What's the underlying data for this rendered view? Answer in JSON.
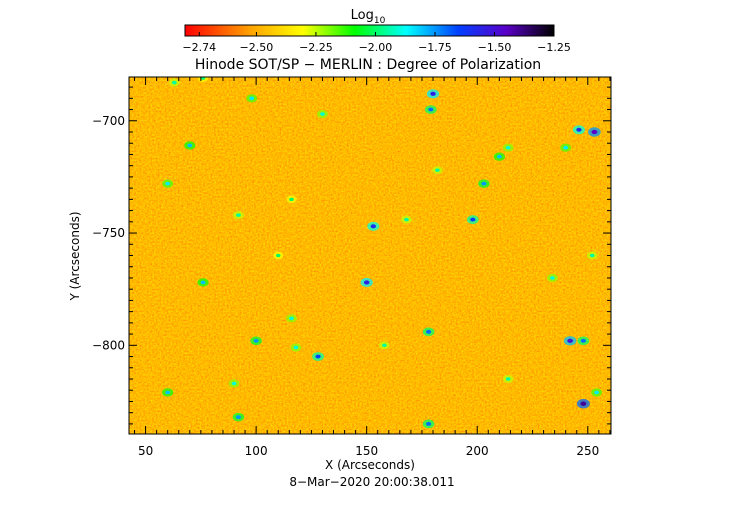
{
  "chart_data": {
    "type": "heatmap",
    "title": "Hinode SOT/SP − MERLIN : Degree of Polarization",
    "xlabel": "X (Arcseconds)",
    "ylabel": "Y (Arcseconds)",
    "xlim": [
      42.5,
      260.5
    ],
    "ylim": [
      -839.5,
      -680.5
    ],
    "xticks": [
      50,
      100,
      150,
      200,
      250
    ],
    "xtick_labels": [
      "50",
      "100",
      "150",
      "200",
      "250"
    ],
    "yticks": [
      -700,
      -750,
      -800
    ],
    "ytick_labels": [
      "−700",
      "−750",
      "−800"
    ],
    "colorbar": {
      "label_main": "Log",
      "label_sub": "10",
      "range": [
        -2.8,
        -1.25
      ],
      "colormap": "rainbow (red→orange→yellow→green→cyan→blue→violet→black)",
      "ticks": [
        -2.74,
        -2.5,
        -2.25,
        -2.0,
        -1.75,
        -1.5,
        -1.25
      ],
      "tick_labels": [
        "−2.74",
        "−2.50",
        "−2.25",
        "−2.00",
        "−1.75",
        "−1.50",
        "−1.25"
      ]
    },
    "map_background_value": -2.6,
    "features": [
      {
        "x": 63,
        "y": -683,
        "v": -1.95
      },
      {
        "x": 76,
        "y": -681,
        "v": -2.0
      },
      {
        "x": 130,
        "y": -697,
        "v": -1.9
      },
      {
        "x": 98,
        "y": -690,
        "v": -1.85
      },
      {
        "x": 180,
        "y": -688,
        "v": -1.55
      },
      {
        "x": 179,
        "y": -695,
        "v": -1.7
      },
      {
        "x": 246,
        "y": -704,
        "v": -1.6
      },
      {
        "x": 253,
        "y": -705,
        "v": -1.45
      },
      {
        "x": 240,
        "y": -712,
        "v": -1.85
      },
      {
        "x": 210,
        "y": -716,
        "v": -1.8
      },
      {
        "x": 214,
        "y": -712,
        "v": -1.9
      },
      {
        "x": 203,
        "y": -728,
        "v": -1.75
      },
      {
        "x": 182,
        "y": -722,
        "v": -1.95
      },
      {
        "x": 60,
        "y": -728,
        "v": -1.85
      },
      {
        "x": 198,
        "y": -744,
        "v": -1.65
      },
      {
        "x": 153,
        "y": -747,
        "v": -1.6
      },
      {
        "x": 168,
        "y": -744,
        "v": -1.95
      },
      {
        "x": 116,
        "y": -735,
        "v": -2.0
      },
      {
        "x": 92,
        "y": -742,
        "v": -1.95
      },
      {
        "x": 150,
        "y": -772,
        "v": -1.55
      },
      {
        "x": 76,
        "y": -772,
        "v": -1.8
      },
      {
        "x": 116,
        "y": -788,
        "v": -1.9
      },
      {
        "x": 178,
        "y": -794,
        "v": -1.7
      },
      {
        "x": 100,
        "y": -798,
        "v": -1.75
      },
      {
        "x": 158,
        "y": -800,
        "v": -1.95
      },
      {
        "x": 118,
        "y": -801,
        "v": -1.9
      },
      {
        "x": 242,
        "y": -798,
        "v": -1.5
      },
      {
        "x": 248,
        "y": -798,
        "v": -1.7
      },
      {
        "x": 128,
        "y": -805,
        "v": -1.65
      },
      {
        "x": 214,
        "y": -815,
        "v": -1.95
      },
      {
        "x": 60,
        "y": -821,
        "v": -1.8
      },
      {
        "x": 90,
        "y": -817,
        "v": -1.9
      },
      {
        "x": 248,
        "y": -826,
        "v": -1.4
      },
      {
        "x": 92,
        "y": -832,
        "v": -1.75
      },
      {
        "x": 178,
        "y": -835,
        "v": -1.7
      },
      {
        "x": 254,
        "y": -821,
        "v": -1.85
      },
      {
        "x": 110,
        "y": -760,
        "v": -2.0
      },
      {
        "x": 234,
        "y": -770,
        "v": -1.9
      },
      {
        "x": 252,
        "y": -760,
        "v": -1.95
      },
      {
        "x": 70,
        "y": -711,
        "v": -1.8
      }
    ]
  },
  "footer": {
    "date": "8−Mar−2020 20:00:38.011"
  }
}
